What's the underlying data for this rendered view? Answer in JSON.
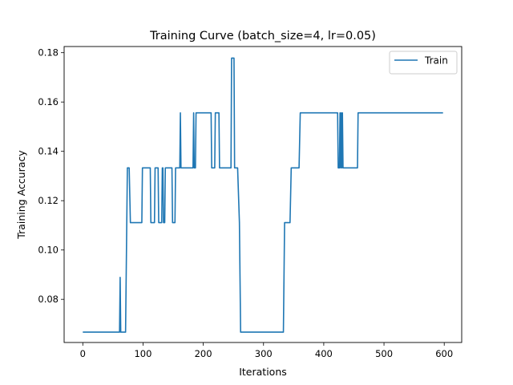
{
  "chart_data": {
    "type": "line",
    "title": "Training Curve (batch_size=4, lr=0.05)",
    "xlabel": "Iterations",
    "ylabel": "Training Accuracy",
    "xlim": [
      -31,
      629
    ],
    "ylim": [
      0.0625,
      0.1825
    ],
    "xticks": [
      0,
      100,
      200,
      300,
      400,
      500,
      600
    ],
    "yticks": [
      0.08,
      0.1,
      0.12,
      0.14,
      0.16,
      0.18
    ],
    "ytick_labels": [
      "0.08",
      "0.10",
      "0.12",
      "0.14",
      "0.16",
      "0.18"
    ],
    "legend": "top-right",
    "grid": false,
    "series": [
      {
        "name": "Train",
        "color": "#1f77b4",
        "points": [
          [
            0,
            0.0667
          ],
          [
            61,
            0.0667
          ],
          [
            62,
            0.0889
          ],
          [
            63,
            0.0667
          ],
          [
            71,
            0.0667
          ],
          [
            73,
            0.1111
          ],
          [
            74,
            0.1333
          ],
          [
            77,
            0.1333
          ],
          [
            79,
            0.1111
          ],
          [
            98,
            0.1111
          ],
          [
            99,
            0.1333
          ],
          [
            112,
            0.1333
          ],
          [
            113,
            0.1111
          ],
          [
            119,
            0.1111
          ],
          [
            120,
            0.1333
          ],
          [
            125,
            0.1333
          ],
          [
            126,
            0.1111
          ],
          [
            131,
            0.1111
          ],
          [
            132,
            0.1333
          ],
          [
            133,
            0.1333
          ],
          [
            134,
            0.1111
          ],
          [
            136,
            0.1111
          ],
          [
            137,
            0.1333
          ],
          [
            148,
            0.1333
          ],
          [
            149,
            0.1111
          ],
          [
            153,
            0.1111
          ],
          [
            154,
            0.1333
          ],
          [
            161,
            0.1333
          ],
          [
            162,
            0.1556
          ],
          [
            163,
            0.1333
          ],
          [
            183,
            0.1333
          ],
          [
            184,
            0.1556
          ],
          [
            185,
            0.1333
          ],
          [
            187,
            0.1333
          ],
          [
            188,
            0.1556
          ],
          [
            213,
            0.1556
          ],
          [
            214,
            0.1333
          ],
          [
            219,
            0.1333
          ],
          [
            220,
            0.1556
          ],
          [
            226,
            0.1556
          ],
          [
            227,
            0.1333
          ],
          [
            246,
            0.1333
          ],
          [
            247,
            0.1778
          ],
          [
            251,
            0.1778
          ],
          [
            252,
            0.1333
          ],
          [
            257,
            0.1333
          ],
          [
            260,
            0.1111
          ],
          [
            262,
            0.0667
          ],
          [
            333,
            0.0667
          ],
          [
            335,
            0.1111
          ],
          [
            344,
            0.1111
          ],
          [
            346,
            0.1333
          ],
          [
            359,
            0.1333
          ],
          [
            361,
            0.1556
          ],
          [
            423,
            0.1556
          ],
          [
            424,
            0.1333
          ],
          [
            426,
            0.1333
          ],
          [
            427,
            0.1556
          ],
          [
            428,
            0.1333
          ],
          [
            429,
            0.1556
          ],
          [
            430,
            0.1333
          ],
          [
            431,
            0.1556
          ],
          [
            432,
            0.1333
          ],
          [
            456,
            0.1333
          ],
          [
            457,
            0.1556
          ],
          [
            598,
            0.1556
          ]
        ]
      }
    ]
  }
}
